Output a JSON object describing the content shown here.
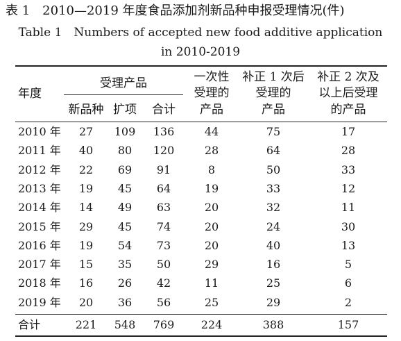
{
  "caption": {
    "cn": "表 1　2010—2019 年度食品添加剂新品种申报受理情况(件)",
    "en_line1": "Table 1　Numbers of accepted new food additive application",
    "en_line2": "in 2010-2019"
  },
  "headers": {
    "year": "年度",
    "accepted_group": "受理产品",
    "new_variety": "新品种",
    "expansion": "扩项",
    "subtotal": "合计",
    "one_time": [
      "一次性",
      "受理的",
      "产品"
    ],
    "after_one": [
      "补正 1 次后",
      "受理的",
      "产品"
    ],
    "after_two": [
      "补正 2 次及",
      "以上后受理",
      "的产品"
    ]
  },
  "rows": [
    {
      "year": "2010 年",
      "new": "27",
      "ext": "109",
      "sum": "136",
      "once": "44",
      "c1": "75",
      "c2": "17"
    },
    {
      "year": "2011 年",
      "new": "40",
      "ext": "80",
      "sum": "120",
      "once": "28",
      "c1": "64",
      "c2": "28"
    },
    {
      "year": "2012 年",
      "new": "22",
      "ext": "69",
      "sum": "91",
      "once": "8",
      "c1": "50",
      "c2": "33"
    },
    {
      "year": "2013 年",
      "new": "19",
      "ext": "45",
      "sum": "64",
      "once": "19",
      "c1": "33",
      "c2": "12"
    },
    {
      "year": "2014 年",
      "new": "14",
      "ext": "49",
      "sum": "63",
      "once": "20",
      "c1": "32",
      "c2": "11"
    },
    {
      "year": "2015 年",
      "new": "29",
      "ext": "45",
      "sum": "74",
      "once": "20",
      "c1": "24",
      "c2": "30"
    },
    {
      "year": "2016 年",
      "new": "19",
      "ext": "54",
      "sum": "73",
      "once": "20",
      "c1": "40",
      "c2": "13"
    },
    {
      "year": "2017 年",
      "new": "15",
      "ext": "35",
      "sum": "50",
      "once": "29",
      "c1": "16",
      "c2": "5"
    },
    {
      "year": "2018 年",
      "new": "16",
      "ext": "26",
      "sum": "42",
      "once": "11",
      "c1": "25",
      "c2": "6"
    },
    {
      "year": "2019 年",
      "new": "20",
      "ext": "36",
      "sum": "56",
      "once": "25",
      "c1": "29",
      "c2": "2"
    }
  ],
  "total": {
    "year": "合计",
    "new": "221",
    "ext": "548",
    "sum": "769",
    "once": "224",
    "c1": "388",
    "c2": "157"
  }
}
